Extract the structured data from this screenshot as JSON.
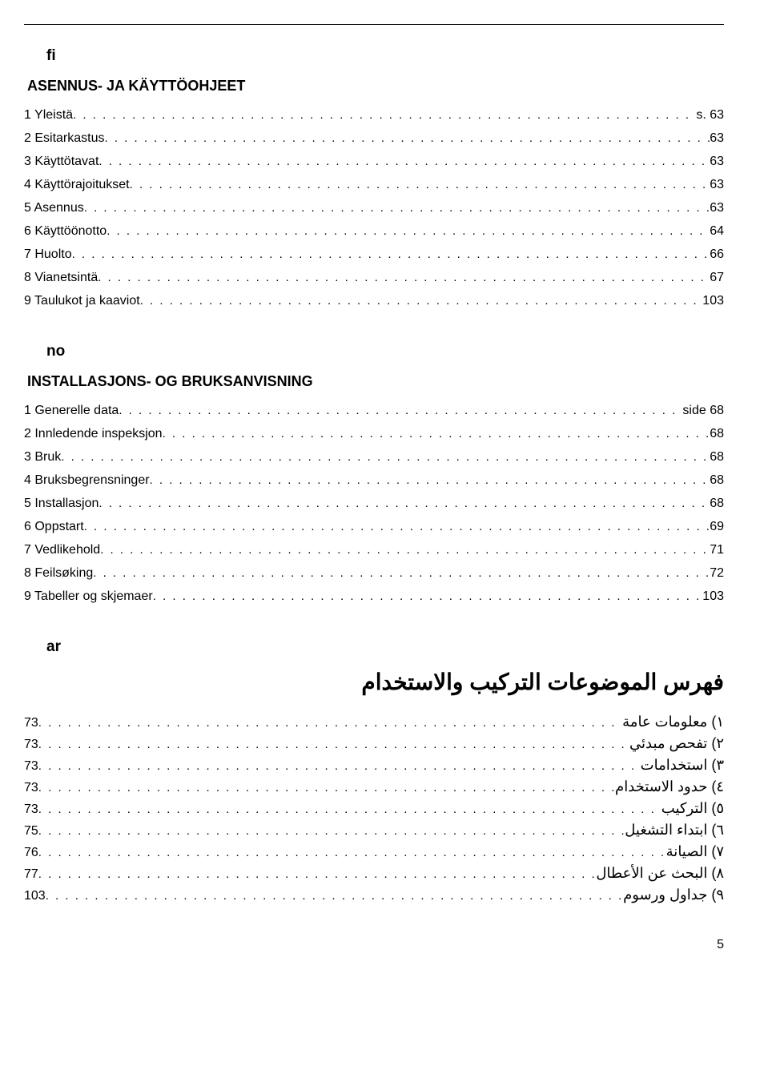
{
  "fi": {
    "code": "fi",
    "title": "ASENNUS- JA KÄYTTÖOHJEET",
    "items": [
      {
        "label": "1 Yleistä",
        "page": "s. 63"
      },
      {
        "label": "2 Esitarkastus",
        "page": "63"
      },
      {
        "label": "3 Käyttötavat",
        "page": "63"
      },
      {
        "label": "4 Käyttörajoitukset",
        "page": "63"
      },
      {
        "label": "5 Asennus",
        "page": "63"
      },
      {
        "label": "6 Käyttöönotto",
        "page": "64"
      },
      {
        "label": "7 Huolto",
        "page": "66"
      },
      {
        "label": "8 Vianetsintä",
        "page": "67"
      },
      {
        "label": "9 Taulukot ja kaaviot",
        "page": "103"
      }
    ]
  },
  "no": {
    "code": "no",
    "title": "INSTALLASJONS- OG BRUKSANVISNING",
    "items": [
      {
        "label": "1 Generelle data",
        "page": "side  68"
      },
      {
        "label": "2 Innledende inspeksjon",
        "page": "68"
      },
      {
        "label": "3 Bruk",
        "page": "68"
      },
      {
        "label": "4 Bruksbegrensninger",
        "page": "68"
      },
      {
        "label": "5 Installasjon",
        "page": "68"
      },
      {
        "label": "6 Oppstart",
        "page": "69"
      },
      {
        "label": "7 Vedlikehold",
        "page": "71"
      },
      {
        "label": "8 Feilsøking",
        "page": "72"
      },
      {
        "label": "9 Tabeller og skjemaer",
        "page": "103"
      }
    ]
  },
  "ar": {
    "code": "ar",
    "title": "فهرس الموضوعات التركيب والاستخدام",
    "items": [
      {
        "label": "١) معلومات عامة",
        "page": "73"
      },
      {
        "label": "٢) تفحص مبدئي",
        "page": "73"
      },
      {
        "label": "٣) استخدامات",
        "page": "73"
      },
      {
        "label": "٤) حدود الاستخدام",
        "page": "73"
      },
      {
        "label": "٥) التركيب",
        "page": "73"
      },
      {
        "label": "٦) ابتداء التشغيل",
        "page": "75"
      },
      {
        "label": "٧) الصيانة",
        "page": "76"
      },
      {
        "label": "٨) البحث عن الأعطال",
        "page": "77"
      },
      {
        "label": "٩) جداول ورسوم",
        "page": "103"
      }
    ]
  },
  "pageNumber": "5",
  "dots": ". . . . . . . . . . . . . . . . . . . . . . . . . . . . . . . . . . . . . . . . . . . . . . . . . . . . . . . . . . . . . . . . . . . . . . . . . . . . . . . . . . . . . . . . . . . . . . . . . . . . . . . . . . . . . . . . . . . . . . . . . . . . . . . . . . . . . . . . . . . . . . . . . . . . . . . . . . . . . . . . . . . . . . . . . . . . . . . . . . . . . . . ."
}
